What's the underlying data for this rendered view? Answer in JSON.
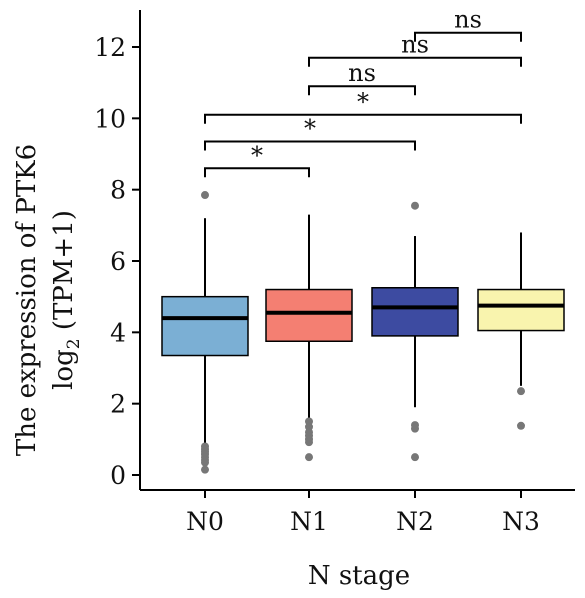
{
  "chart_data": {
    "type": "box",
    "xlabel": "N stage",
    "ylabel_line1": "The expression of PTK6",
    "ylabel_line2_prefix": "log",
    "ylabel_line2_sub": "2",
    "ylabel_line2_suffix": " (TPM+1)",
    "ylim": [
      -0.3,
      13
    ],
    "yticks": [
      "0",
      "2",
      "4",
      "6",
      "8",
      "10",
      "12"
    ],
    "categories": [
      "N0",
      "N1",
      "N2",
      "N3"
    ],
    "boxes": [
      {
        "label": "N0",
        "color": "#7bafd4",
        "whisker_low": 0.75,
        "q1": 3.35,
        "median": 4.4,
        "q3": 5.0,
        "whisker_high": 7.2,
        "outliers": [
          7.85,
          0.8,
          0.72,
          0.65,
          0.58,
          0.5,
          0.42,
          0.35,
          0.15
        ]
      },
      {
        "label": "N1",
        "color": "#f47f72",
        "whisker_low": 1.5,
        "q1": 3.75,
        "median": 4.55,
        "q3": 5.2,
        "whisker_high": 7.3,
        "outliers": [
          1.5,
          1.35,
          1.2,
          1.1,
          1.0,
          0.92,
          0.5
        ]
      },
      {
        "label": "N2",
        "color": "#3d4ba1",
        "whisker_low": 1.9,
        "q1": 3.9,
        "median": 4.7,
        "q3": 5.25,
        "whisker_high": 6.7,
        "outliers": [
          7.55,
          1.4,
          1.3,
          0.5
        ]
      },
      {
        "label": "N3",
        "color": "#f9f4ae",
        "whisker_low": 2.5,
        "q1": 4.05,
        "median": 4.75,
        "q3": 5.2,
        "whisker_high": 6.8,
        "outliers": [
          2.35,
          1.38
        ]
      }
    ],
    "comparisons": [
      {
        "from": "N0",
        "to": "N1",
        "y": 8.6,
        "label": "*"
      },
      {
        "from": "N0",
        "to": "N2",
        "y": 9.35,
        "label": "*"
      },
      {
        "from": "N0",
        "to": "N3",
        "y": 10.1,
        "label": "*"
      },
      {
        "from": "N1",
        "to": "N2",
        "y": 10.9,
        "label": "ns"
      },
      {
        "from": "N1",
        "to": "N3",
        "y": 11.7,
        "label": "ns"
      },
      {
        "from": "N2",
        "to": "N3",
        "y": 12.4,
        "label": "ns"
      }
    ],
    "grid": false,
    "legend": "none"
  }
}
